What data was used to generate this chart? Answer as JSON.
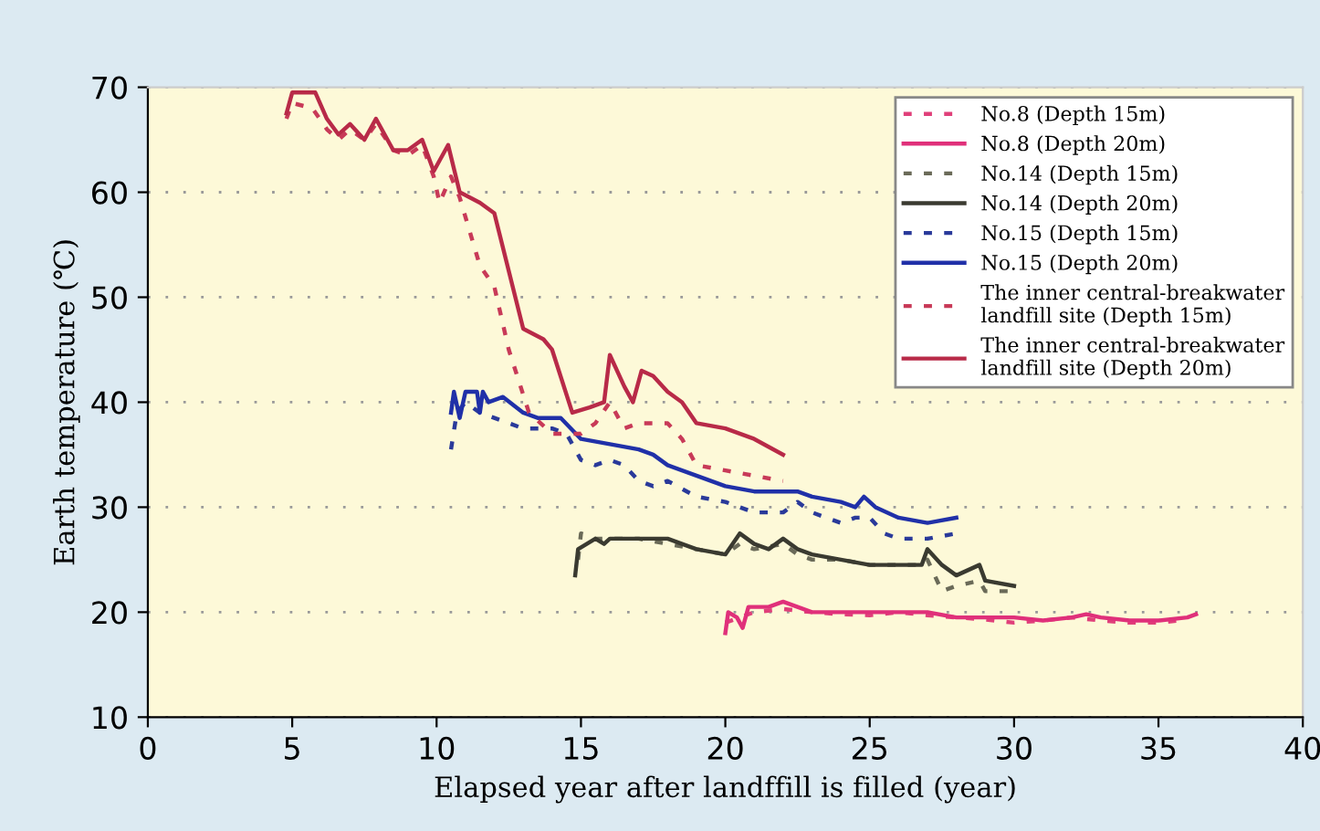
{
  "chart_data": {
    "type": "line",
    "xlabel": "Elapsed year after landffill is filled (year)",
    "ylabel": "Earth temperature (℃)",
    "xlim": [
      0,
      40
    ],
    "xticks": [
      0,
      5,
      10,
      15,
      20,
      25,
      30,
      35,
      40
    ],
    "ylim": [
      10,
      70
    ],
    "yticks": [
      10,
      20,
      30,
      40,
      50,
      60,
      70
    ],
    "grid": "y",
    "legend": "top right",
    "marker": "none",
    "series": [
      {
        "name": "No.8 (Depth 15m)",
        "color": "#e0407a",
        "line_style": "dotted",
        "x": [
          20.0,
          20.5,
          21.0,
          22.0,
          23.0,
          24.0,
          25.0,
          26.0,
          27.0,
          28.0,
          29.0,
          30.0,
          31.0,
          32.0,
          33.0,
          34.0,
          35.0,
          36.0
        ],
        "values": [
          19,
          19.5,
          20,
          20.3,
          20,
          19.8,
          19.7,
          20,
          19.7,
          19.5,
          19.3,
          19,
          19.2,
          19.5,
          19.2,
          19,
          19,
          19.3
        ]
      },
      {
        "name": "No.8 (Depth 20m)",
        "color": "#e0307a",
        "line_style": "solid",
        "x": [
          20.0,
          20.1,
          20.4,
          20.6,
          20.8,
          21.5,
          22.0,
          23.0,
          24.0,
          25.0,
          26.0,
          27.0,
          28.0,
          29.0,
          30.0,
          31.0,
          32.0,
          32.5,
          33.0,
          34.0,
          35.0,
          36.0,
          36.3
        ],
        "values": [
          18,
          20,
          19.5,
          18.5,
          20.5,
          20.5,
          21,
          20,
          20,
          20,
          20,
          20,
          19.5,
          19.5,
          19.5,
          19.2,
          19.5,
          19.8,
          19.5,
          19.2,
          19.2,
          19.5,
          19.8
        ]
      },
      {
        "name": "No.14 (Depth 15m)",
        "color": "#6a6a58",
        "line_style": "dotted",
        "x": [
          14.9,
          15.0,
          15.5,
          16.0,
          17.0,
          18.0,
          19.0,
          20.0,
          20.5,
          21.0,
          22.0,
          22.5,
          23.0,
          24.0,
          25.0,
          26.0,
          26.8,
          27.0,
          27.5,
          28.0,
          28.8,
          29.0,
          30.0
        ],
        "values": [
          25,
          27.5,
          27,
          27,
          27,
          26.5,
          26,
          25.5,
          26.5,
          26,
          26.5,
          25.5,
          25,
          25,
          24.5,
          24.5,
          24.5,
          25,
          22,
          22.5,
          23,
          22,
          22
        ]
      },
      {
        "name": "No.14 (Depth 20m)",
        "color": "#3a3a30",
        "line_style": "solid",
        "x": [
          14.8,
          14.9,
          15.2,
          15.5,
          15.8,
          16.0,
          17.0,
          18.0,
          19.0,
          20.0,
          20.5,
          21.0,
          21.5,
          22.0,
          22.5,
          23.0,
          24.0,
          25.0,
          26.0,
          26.8,
          27.0,
          27.5,
          28.0,
          28.8,
          29.0,
          30.0
        ],
        "values": [
          23.5,
          26,
          26.5,
          27,
          26.5,
          27,
          27,
          27,
          26,
          25.5,
          27.5,
          26.5,
          26,
          27,
          26,
          25.5,
          25,
          24.5,
          24.5,
          24.5,
          26,
          24.5,
          23.5,
          24.5,
          23,
          22.5
        ]
      },
      {
        "name": "No.15 (Depth 15m)",
        "color": "#2a3a9a",
        "line_style": "dotted",
        "x": [
          10.5,
          10.7,
          11.0,
          11.5,
          12.0,
          13.0,
          14.0,
          14.5,
          15.0,
          15.5,
          16.0,
          16.5,
          17.0,
          17.5,
          18.0,
          19.0,
          20.0,
          21.0,
          22.0,
          22.5,
          23.0,
          24.0,
          24.5,
          25.0,
          25.5,
          26.0,
          27.0,
          28.0
        ],
        "values": [
          35.5,
          39,
          40,
          39,
          38.5,
          37.5,
          37.5,
          37,
          34.5,
          34,
          34.5,
          34,
          32.5,
          32,
          32.5,
          31,
          30.5,
          29.5,
          29.5,
          30.5,
          29.5,
          28.5,
          29,
          29,
          27.5,
          27,
          27,
          27.5
        ]
      },
      {
        "name": "No.15 (Depth 20m)",
        "color": "#2030a8",
        "line_style": "solid",
        "x": [
          10.5,
          10.6,
          10.8,
          11.0,
          11.4,
          11.5,
          11.6,
          11.8,
          12.3,
          13.0,
          13.5,
          14.3,
          15.0,
          16.0,
          17.0,
          17.5,
          18.0,
          19.0,
          20.0,
          21.0,
          22.0,
          22.5,
          23.0,
          24.0,
          24.5,
          24.8,
          25.2,
          26.0,
          27.0,
          28.0
        ],
        "values": [
          39,
          41,
          38.5,
          41,
          41,
          39,
          41,
          40,
          40.5,
          39,
          38.5,
          38.5,
          36.5,
          36,
          35.5,
          35,
          34,
          33,
          32,
          31.5,
          31.5,
          31.5,
          31,
          30.5,
          30,
          31,
          30,
          29,
          28.5,
          29
        ]
      },
      {
        "name": "The inner central-breakwater\nlandfill site (Depth 15m)",
        "color": "#c83a58",
        "line_style": "dotted",
        "x": [
          4.8,
          5.0,
          5.7,
          6.2,
          6.6,
          7.0,
          7.5,
          7.9,
          8.5,
          9.0,
          9.5,
          9.9,
          10.1,
          10.5,
          10.8,
          11.5,
          12.0,
          12.5,
          13.2,
          14.0,
          15.0,
          15.5,
          16.0,
          16.5,
          17.0,
          18.0,
          18.5,
          19.0,
          20.0,
          21.0,
          22.0
        ],
        "values": [
          67,
          68.5,
          68,
          66,
          65,
          66,
          65,
          66.5,
          64,
          63.5,
          64.5,
          61.5,
          59,
          61.5,
          59.5,
          53,
          51,
          45,
          39,
          37,
          37,
          38,
          40,
          37.5,
          38,
          38,
          36.5,
          34,
          33.5,
          33,
          32.5
        ]
      },
      {
        "name": "The inner central-breakwater\nlandfill site (Depth 20m)",
        "color": "#b82a48",
        "line_style": "solid",
        "x": [
          4.8,
          5.0,
          5.8,
          6.2,
          6.6,
          7.0,
          7.5,
          7.9,
          8.5,
          9.0,
          9.5,
          9.9,
          10.4,
          10.8,
          11.5,
          12.0,
          13.0,
          13.7,
          14.0,
          14.7,
          15.3,
          15.8,
          16.0,
          16.5,
          16.8,
          17.1,
          17.5,
          18.0,
          18.5,
          19.0,
          20.0,
          21.0,
          22.0
        ],
        "values": [
          67.5,
          69.5,
          69.5,
          67,
          65.5,
          66.5,
          65,
          67,
          64,
          64,
          65,
          62,
          64.5,
          60,
          59,
          58,
          47,
          46,
          45,
          39,
          39.5,
          40,
          44.5,
          41.5,
          40,
          43,
          42.5,
          41,
          40,
          38,
          37.5,
          36.5,
          35
        ]
      }
    ]
  }
}
